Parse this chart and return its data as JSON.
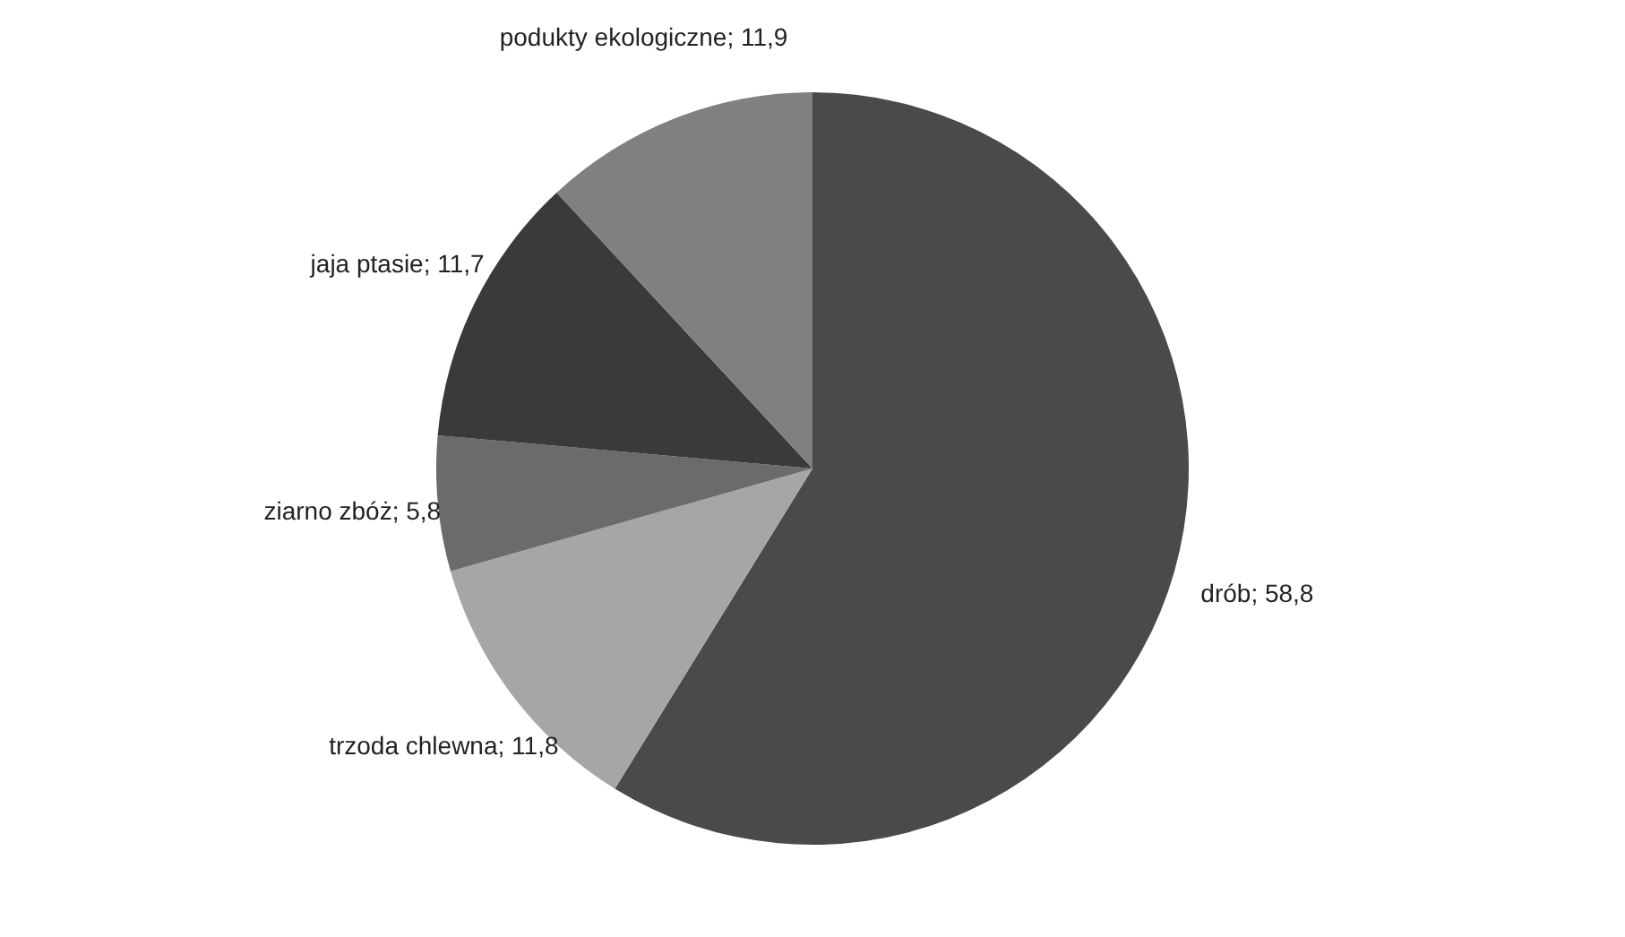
{
  "chart_data": {
    "type": "pie",
    "categories": [
      "drób",
      "trzoda chlewna",
      "ziarno zbóż",
      "jaja ptasie",
      "podukty ekologiczne"
    ],
    "values": [
      58.8,
      11.8,
      5.8,
      11.7,
      11.9
    ],
    "value_labels": [
      "58,8",
      "11,8",
      "5,8",
      "11,7",
      "11,9"
    ],
    "colors": [
      "#4a4a4a",
      "#a6a6a6",
      "#6b6b6b",
      "#3a3a3a",
      "#808080"
    ]
  }
}
